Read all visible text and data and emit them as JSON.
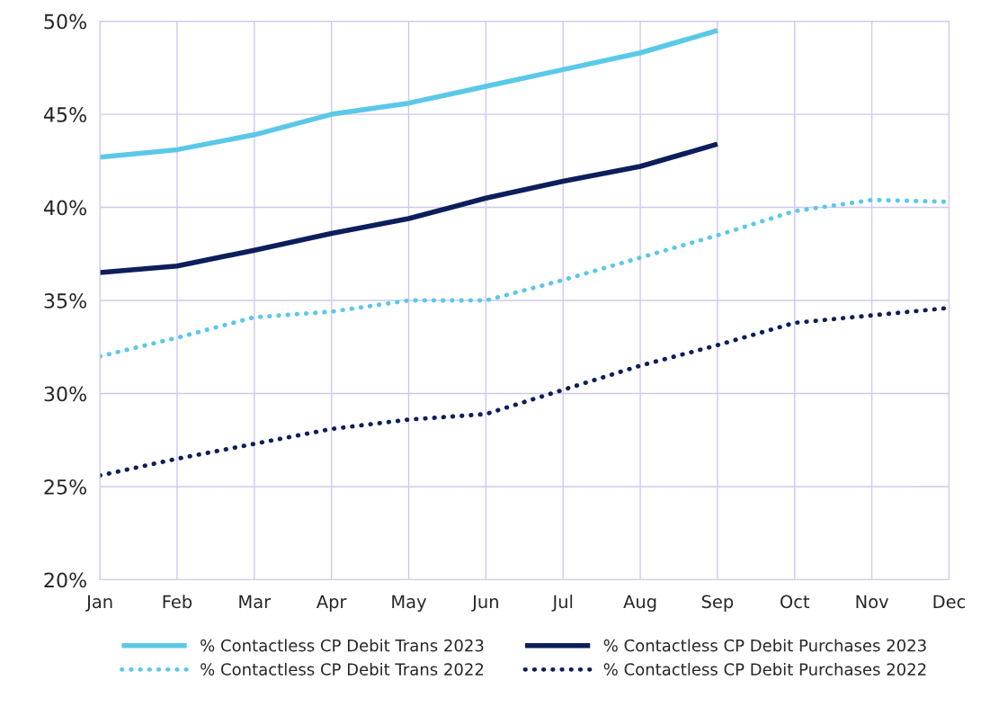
{
  "chart_data": {
    "type": "line",
    "categories": [
      "Jan",
      "Feb",
      "Mar",
      "Apr",
      "May",
      "Jun",
      "Jul",
      "Aug",
      "Sep",
      "Oct",
      "Nov",
      "Dec"
    ],
    "series": [
      {
        "name": "% Contactless CP Debit Trans 2023",
        "color": "#5bc8e8",
        "line_style": "solid",
        "values": [
          42.7,
          43.1,
          43.9,
          45.0,
          45.6,
          46.5,
          47.4,
          48.3,
          49.5,
          null,
          null,
          null
        ]
      },
      {
        "name": "% Contactless CP Debit Purchases 2023",
        "color": "#0c1e5b",
        "line_style": "solid",
        "values": [
          36.5,
          36.85,
          37.7,
          38.6,
          39.4,
          40.5,
          41.4,
          42.2,
          43.4,
          null,
          null,
          null
        ]
      },
      {
        "name": "% Contactless CP Debit Trans 2022",
        "color": "#5bc8e8",
        "line_style": "dotted",
        "values": [
          32.0,
          33.0,
          34.1,
          34.4,
          35.0,
          35.0,
          36.1,
          37.3,
          38.5,
          39.8,
          40.4,
          40.3
        ]
      },
      {
        "name": "% Contactless CP Debit Purchases 2022",
        "color": "#0c1e5b",
        "line_style": "dotted",
        "values": [
          25.6,
          26.5,
          27.3,
          28.1,
          28.6,
          28.9,
          30.2,
          31.5,
          32.6,
          33.8,
          34.2,
          34.6
        ]
      }
    ],
    "ylim": [
      20,
      50
    ],
    "yticks": [
      {
        "value": 20,
        "label": "20%"
      },
      {
        "value": 25,
        "label": "25%"
      },
      {
        "value": 30,
        "label": "30%"
      },
      {
        "value": 35,
        "label": "35%"
      },
      {
        "value": 40,
        "label": "40%"
      },
      {
        "value": 45,
        "label": "45%"
      },
      {
        "value": 50,
        "label": "50%"
      }
    ],
    "grid": true,
    "legend": "bottom",
    "marker": "none"
  }
}
